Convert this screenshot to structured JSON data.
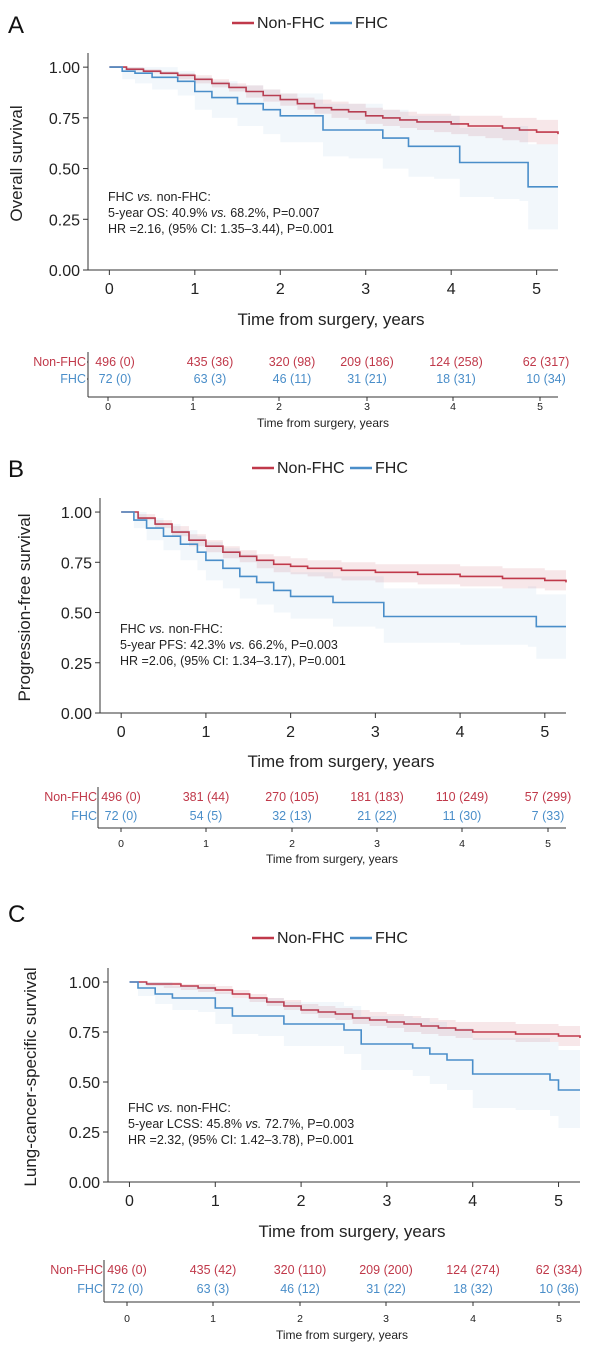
{
  "colors": {
    "non_fhc": "#c0394a",
    "fhc": "#4a8ec9",
    "axis": "#333333"
  },
  "panels": [
    {
      "letter": "A",
      "legend": [
        "Non-FHC",
        "FHC"
      ],
      "ylabel": "Overall survival",
      "xlabel": "Time from surgery, years",
      "yticks": [
        "0.00",
        "0.25",
        "0.50",
        "0.75",
        "1.00"
      ],
      "xticks": [
        "0",
        "1",
        "2",
        "3",
        "4",
        "5"
      ],
      "annotation": [
        {
          "parts": [
            {
              "t": "FHC "
            },
            {
              "t": "vs.",
              "i": true
            },
            {
              "t": " non-FHC:"
            }
          ]
        },
        {
          "parts": [
            {
              "t": "5-year OS: 40.9% "
            },
            {
              "t": "vs.",
              "i": true
            },
            {
              "t": " 68.2%, P=0.007"
            }
          ]
        },
        {
          "parts": [
            {
              "t": "HR =2.16, (95% CI: 1.35–3.44), P=0.001"
            }
          ]
        }
      ],
      "risk_table": {
        "row_labels": [
          "Non-FHC",
          "FHC"
        ],
        "non_fhc": [
          "496 (0)",
          "435 (36)",
          "320 (98)",
          "209 (186)",
          "124 (258)",
          "62 (317)"
        ],
        "fhc": [
          "72 (0)",
          "63 (3)",
          "46 (11)",
          "31 (21)",
          "18 (31)",
          "10 (34)"
        ],
        "xticks": [
          "0",
          "1",
          "2",
          "3",
          "4",
          "5"
        ],
        "xlabel": "Time from surgery, years"
      }
    },
    {
      "letter": "B",
      "legend": [
        "Non-FHC",
        "FHC"
      ],
      "ylabel": "Progression-free survival",
      "xlabel": "Time from surgery, years",
      "yticks": [
        "0.00",
        "0.25",
        "0.50",
        "0.75",
        "1.00"
      ],
      "xticks": [
        "0",
        "1",
        "2",
        "3",
        "4",
        "5"
      ],
      "annotation": [
        {
          "parts": [
            {
              "t": "FHC "
            },
            {
              "t": "vs.",
              "i": true
            },
            {
              "t": " non-FHC:"
            }
          ]
        },
        {
          "parts": [
            {
              "t": "5-year PFS: 42.3% "
            },
            {
              "t": "vs.",
              "i": true
            },
            {
              "t": " 66.2%, P=0.003"
            }
          ]
        },
        {
          "parts": [
            {
              "t": "HR =2.06, (95% CI: 1.34–3.17), P=0.001"
            }
          ]
        }
      ],
      "risk_table": {
        "row_labels": [
          "Non-FHC",
          "FHC"
        ],
        "non_fhc": [
          "496 (0)",
          "381 (44)",
          "270 (105)",
          "181 (183)",
          "110 (249)",
          "57 (299)"
        ],
        "fhc": [
          "72 (0)",
          "54 (5)",
          "32 (13)",
          "21 (22)",
          "11 (30)",
          "7 (33)"
        ],
        "xticks": [
          "0",
          "1",
          "2",
          "3",
          "4",
          "5"
        ],
        "xlabel": "Time from surgery, years"
      }
    },
    {
      "letter": "C",
      "legend": [
        "Non-FHC",
        "FHC"
      ],
      "ylabel": "Lung-cancer-specific survival",
      "xlabel": "Time from surgery, years",
      "yticks": [
        "0.00",
        "0.25",
        "0.50",
        "0.75",
        "1.00"
      ],
      "xticks": [
        "0",
        "1",
        "2",
        "3",
        "4",
        "5"
      ],
      "annotation": [
        {
          "parts": [
            {
              "t": "FHC "
            },
            {
              "t": "vs.",
              "i": true
            },
            {
              "t": " non-FHC:"
            }
          ]
        },
        {
          "parts": [
            {
              "t": "5-year LCSS: 45.8% "
            },
            {
              "t": "vs.",
              "i": true
            },
            {
              "t": " 72.7%, P=0.003"
            }
          ]
        },
        {
          "parts": [
            {
              "t": "HR =2.32, (95% CI: 1.42–3.78), P=0.001"
            }
          ]
        }
      ],
      "risk_table": {
        "row_labels": [
          "Non-FHC",
          "FHC"
        ],
        "non_fhc": [
          "496 (0)",
          "435 (42)",
          "320 (110)",
          "209 (200)",
          "124 (274)",
          "62 (334)"
        ],
        "fhc": [
          "72 (0)",
          "63 (3)",
          "46 (12)",
          "31 (22)",
          "18 (32)",
          "10 (36)"
        ],
        "xticks": [
          "0",
          "1",
          "2",
          "3",
          "4",
          "5"
        ],
        "xlabel": "Time from surgery, years"
      }
    }
  ],
  "chart_data": [
    {
      "type": "line",
      "xlabel": "Time from surgery, years",
      "ylabel": "Overall survival",
      "xlim": [
        -0.25,
        5.25
      ],
      "ylim": [
        0,
        1.05
      ],
      "grid": false,
      "legend_position": "top-center",
      "series": [
        {
          "name": "Non-FHC",
          "step": true,
          "x": [
            0,
            0.2,
            0.4,
            0.6,
            0.8,
            1.0,
            1.2,
            1.4,
            1.6,
            1.8,
            2.0,
            2.2,
            2.4,
            2.6,
            2.8,
            3.0,
            3.2,
            3.4,
            3.6,
            3.8,
            4.0,
            4.2,
            4.4,
            4.6,
            4.8,
            5.0,
            5.25
          ],
          "y": [
            1.0,
            0.99,
            0.98,
            0.97,
            0.96,
            0.94,
            0.92,
            0.9,
            0.88,
            0.86,
            0.84,
            0.82,
            0.8,
            0.79,
            0.78,
            0.76,
            0.75,
            0.74,
            0.73,
            0.73,
            0.72,
            0.71,
            0.71,
            0.7,
            0.69,
            0.68,
            0.67
          ],
          "ci_low": [
            1.0,
            0.98,
            0.97,
            0.96,
            0.94,
            0.92,
            0.9,
            0.88,
            0.85,
            0.83,
            0.81,
            0.79,
            0.77,
            0.75,
            0.74,
            0.72,
            0.71,
            0.7,
            0.69,
            0.68,
            0.67,
            0.66,
            0.65,
            0.64,
            0.63,
            0.62,
            0.61
          ],
          "ci_high": [
            1.0,
            1.0,
            0.99,
            0.98,
            0.97,
            0.96,
            0.94,
            0.92,
            0.91,
            0.89,
            0.87,
            0.85,
            0.84,
            0.83,
            0.82,
            0.8,
            0.79,
            0.78,
            0.77,
            0.77,
            0.76,
            0.76,
            0.76,
            0.75,
            0.75,
            0.74,
            0.73
          ]
        },
        {
          "name": "FHC",
          "step": true,
          "x": [
            0,
            0.15,
            0.3,
            0.5,
            0.8,
            1.0,
            1.2,
            1.5,
            1.8,
            2.0,
            2.5,
            2.8,
            3.2,
            3.5,
            3.8,
            4.1,
            4.5,
            4.8,
            4.9,
            5.25
          ],
          "y": [
            1.0,
            0.98,
            0.97,
            0.95,
            0.93,
            0.88,
            0.85,
            0.82,
            0.79,
            0.76,
            0.69,
            0.69,
            0.65,
            0.61,
            0.61,
            0.53,
            0.53,
            0.53,
            0.41,
            0.41
          ],
          "ci_low": [
            1.0,
            0.94,
            0.92,
            0.89,
            0.86,
            0.79,
            0.75,
            0.71,
            0.67,
            0.63,
            0.56,
            0.55,
            0.5,
            0.46,
            0.45,
            0.36,
            0.35,
            0.34,
            0.2,
            0.2
          ],
          "ci_high": [
            1.0,
            1.0,
            1.0,
            1.0,
            0.98,
            0.95,
            0.93,
            0.91,
            0.89,
            0.87,
            0.82,
            0.82,
            0.79,
            0.76,
            0.76,
            0.7,
            0.7,
            0.71,
            0.62,
            0.62
          ]
        }
      ]
    },
    {
      "type": "line",
      "xlabel": "Time from surgery, years",
      "ylabel": "Progression-free survival",
      "xlim": [
        -0.25,
        5.25
      ],
      "ylim": [
        0,
        1.05
      ],
      "grid": false,
      "legend_position": "top-center",
      "series": [
        {
          "name": "Non-FHC",
          "step": true,
          "x": [
            0,
            0.2,
            0.4,
            0.6,
            0.8,
            1.0,
            1.2,
            1.4,
            1.6,
            1.8,
            2.0,
            2.2,
            2.4,
            2.6,
            2.8,
            3.0,
            3.5,
            4.0,
            4.5,
            5.0,
            5.25
          ],
          "y": [
            1.0,
            0.97,
            0.94,
            0.9,
            0.86,
            0.83,
            0.8,
            0.78,
            0.76,
            0.74,
            0.73,
            0.72,
            0.72,
            0.71,
            0.71,
            0.7,
            0.69,
            0.68,
            0.67,
            0.66,
            0.65
          ],
          "ci_low": [
            1.0,
            0.96,
            0.92,
            0.88,
            0.83,
            0.8,
            0.77,
            0.75,
            0.72,
            0.7,
            0.69,
            0.68,
            0.67,
            0.66,
            0.66,
            0.65,
            0.64,
            0.63,
            0.62,
            0.61,
            0.6
          ],
          "ci_high": [
            1.0,
            0.99,
            0.96,
            0.93,
            0.89,
            0.86,
            0.83,
            0.81,
            0.79,
            0.78,
            0.77,
            0.76,
            0.76,
            0.75,
            0.75,
            0.74,
            0.74,
            0.73,
            0.72,
            0.71,
            0.7
          ]
        },
        {
          "name": "FHC",
          "step": true,
          "x": [
            0,
            0.15,
            0.3,
            0.5,
            0.7,
            0.9,
            1.0,
            1.2,
            1.4,
            1.6,
            1.8,
            2.0,
            2.5,
            3.0,
            3.1,
            4.0,
            4.8,
            4.9,
            5.25
          ],
          "y": [
            1.0,
            0.96,
            0.92,
            0.88,
            0.84,
            0.8,
            0.76,
            0.72,
            0.68,
            0.65,
            0.61,
            0.58,
            0.55,
            0.55,
            0.48,
            0.48,
            0.48,
            0.43,
            0.43
          ],
          "ci_low": [
            1.0,
            0.92,
            0.86,
            0.81,
            0.76,
            0.71,
            0.66,
            0.62,
            0.57,
            0.54,
            0.5,
            0.47,
            0.43,
            0.42,
            0.35,
            0.34,
            0.33,
            0.27,
            0.27
          ],
          "ci_high": [
            1.0,
            1.0,
            0.97,
            0.94,
            0.91,
            0.88,
            0.85,
            0.82,
            0.79,
            0.76,
            0.73,
            0.7,
            0.68,
            0.68,
            0.62,
            0.62,
            0.63,
            0.59,
            0.59
          ]
        }
      ]
    },
    {
      "type": "line",
      "xlabel": "Time from surgery, years",
      "ylabel": "Lung-cancer-specific survival",
      "xlim": [
        -0.25,
        5.25
      ],
      "ylim": [
        0,
        1.05
      ],
      "grid": false,
      "legend_position": "top-center",
      "series": [
        {
          "name": "Non-FHC",
          "step": true,
          "x": [
            0,
            0.2,
            0.4,
            0.6,
            0.8,
            1.0,
            1.2,
            1.4,
            1.6,
            1.8,
            2.0,
            2.2,
            2.4,
            2.6,
            2.8,
            3.0,
            3.2,
            3.4,
            3.6,
            3.8,
            4.0,
            4.5,
            5.0,
            5.25
          ],
          "y": [
            1.0,
            0.99,
            0.99,
            0.98,
            0.97,
            0.96,
            0.94,
            0.92,
            0.9,
            0.88,
            0.86,
            0.85,
            0.84,
            0.82,
            0.81,
            0.8,
            0.79,
            0.78,
            0.77,
            0.76,
            0.75,
            0.74,
            0.73,
            0.72
          ],
          "ci_low": [
            1.0,
            0.98,
            0.97,
            0.96,
            0.95,
            0.94,
            0.92,
            0.9,
            0.88,
            0.86,
            0.84,
            0.82,
            0.81,
            0.79,
            0.78,
            0.77,
            0.75,
            0.74,
            0.73,
            0.72,
            0.71,
            0.7,
            0.68,
            0.67
          ],
          "ci_high": [
            1.0,
            1.0,
            1.0,
            0.99,
            0.99,
            0.98,
            0.96,
            0.94,
            0.92,
            0.91,
            0.89,
            0.88,
            0.87,
            0.86,
            0.85,
            0.84,
            0.83,
            0.82,
            0.81,
            0.8,
            0.8,
            0.79,
            0.78,
            0.77
          ]
        },
        {
          "name": "FHC",
          "step": true,
          "x": [
            0,
            0.1,
            0.3,
            0.5,
            0.8,
            1.0,
            1.2,
            1.5,
            1.8,
            2.0,
            2.5,
            2.7,
            3.3,
            3.5,
            3.7,
            4.0,
            4.5,
            4.9,
            5.0,
            5.25
          ],
          "y": [
            1.0,
            0.97,
            0.94,
            0.92,
            0.92,
            0.87,
            0.83,
            0.83,
            0.79,
            0.79,
            0.76,
            0.69,
            0.67,
            0.64,
            0.61,
            0.54,
            0.54,
            0.51,
            0.46,
            0.46
          ],
          "ci_low": [
            1.0,
            0.93,
            0.89,
            0.86,
            0.85,
            0.79,
            0.74,
            0.73,
            0.68,
            0.68,
            0.64,
            0.56,
            0.53,
            0.49,
            0.46,
            0.37,
            0.36,
            0.33,
            0.27,
            0.27
          ],
          "ci_high": [
            1.0,
            1.0,
            1.0,
            0.98,
            0.98,
            0.95,
            0.92,
            0.92,
            0.9,
            0.9,
            0.88,
            0.83,
            0.82,
            0.8,
            0.77,
            0.72,
            0.72,
            0.7,
            0.66,
            0.66
          ]
        }
      ]
    }
  ]
}
